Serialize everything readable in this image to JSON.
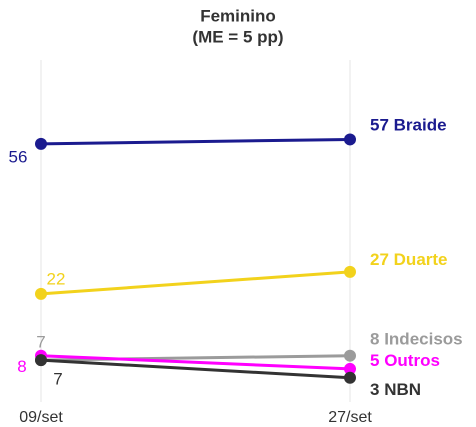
{
  "chart_data": {
    "type": "line",
    "title": "Feminino",
    "subtitle": "(ME = 5 pp)",
    "categories": [
      "09/set",
      "27/set"
    ],
    "ylim": [
      0,
      75
    ],
    "series": [
      {
        "name": "Braide",
        "color": "#1b1b8f",
        "values": [
          56,
          57
        ]
      },
      {
        "name": "Duarte",
        "color": "#f2d21c",
        "values": [
          22,
          27
        ]
      },
      {
        "name": "Indecisos",
        "color": "#9b9b9b",
        "values": [
          7,
          8
        ]
      },
      {
        "name": "Outros",
        "color": "#ff00ff",
        "values": [
          8,
          5
        ]
      },
      {
        "name": "NBN",
        "color": "#333333",
        "values": [
          7,
          3
        ]
      }
    ]
  }
}
